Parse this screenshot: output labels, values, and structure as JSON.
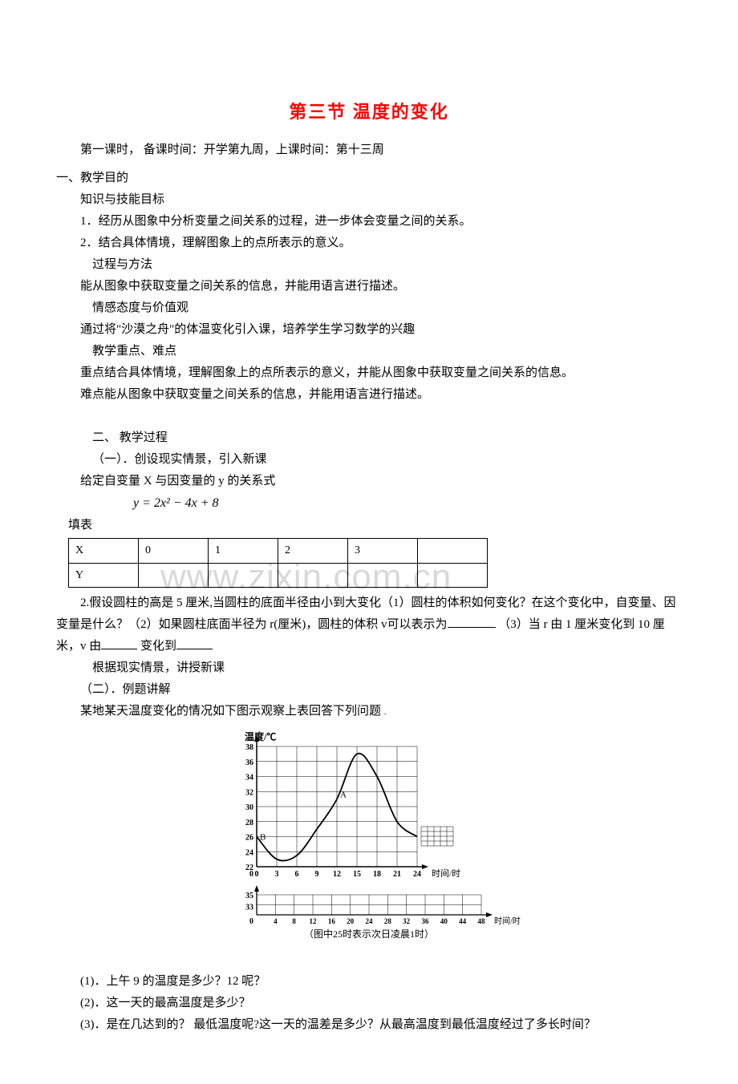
{
  "title": "第三节  温度的变化",
  "subtitle": "第一课时，    备课时间：开学第九周，上课时间：第十三周",
  "sections": {
    "s1": "一、教学目的",
    "s1a": "知识与技能目标",
    "s1a1": "1．经历从图象中分析变量之间关系的过程，进一步体会变量之间的关系。",
    "s1a2": "2．结合具体情境，理解图象上的点所表示的意义。",
    "s1b": "过程与方法",
    "s1b1": "能从图象中获取变量之间关系的信息，并能用语言进行描述。",
    "s1c": "情感态度与价值观",
    "s1c1": "通过将\"沙漠之舟\"的体温变化引入课，培养学生学习数学的兴趣",
    "s1d": "教学重点、难点",
    "s1d1": "重点结合具体情境，理解图象上的点所表示的意义，并能从图象中获取变量之间关系的信息。",
    "s1d2": "难点能从图象中获取变量之间关系的信息，并能用语言进行描述。",
    "s2": "二、 教学过程",
    "s2a": "（一）．创设现实情景，引入新课",
    "s2a1": "给定自变量 X 与因变量的 y 的关系式",
    "formula": "y = 2x² − 4x + 8",
    "filltable": "填表",
    "s2a2_pre": "2.假设圆柱的高是 5 厘米,当圆柱的底面半径由小到大变化（1）圆柱的体积如何变化？在这个变化中，自变量、因变量是什么？（2）如果圆柱底面半径为 r(厘米)，圆柱的体积 v可以表示为",
    "s2a2_mid": "（3）当 r 由 1 厘米变化到 10 厘米，v 由",
    "s2a2_mid2": " 变化到",
    "s2a3": "根据现实情景，讲授新课",
    "s2b": "（二）．例题讲解",
    "s2b1": "某地某天温度变化的情况如下图示观察上表回答下列问题",
    "q1": "(1)．上午 9 的温度是多少？12 呢？",
    "q2": "(2)．这一天的最高温度是多少？",
    "q3": "(3)．是在几达到的？  最低温度呢?这一天的温差是多少？从最高温度到最低温度经过了多长时间？"
  },
  "table": {
    "headers": [
      "X",
      "0",
      "1",
      "2",
      "3",
      ""
    ],
    "row2": [
      "Y",
      "",
      "",
      "",
      "",
      ""
    ]
  },
  "watermark": "www.zixin.com.cn",
  "chart": {
    "upper": {
      "ylabel": "温度/℃",
      "xlabel": "时间/时",
      "yticks": [
        22,
        24,
        26,
        28,
        30,
        32,
        34,
        36,
        38,
        0
      ],
      "xticks": [
        0,
        3,
        6,
        9,
        12,
        15,
        18,
        21,
        24
      ],
      "pointA": "A",
      "pointB": "B",
      "curve": [
        [
          0,
          26
        ],
        [
          3,
          23
        ],
        [
          6,
          23.5
        ],
        [
          9,
          27
        ],
        [
          12,
          31
        ],
        [
          15,
          37
        ],
        [
          18,
          34
        ],
        [
          21,
          28
        ],
        [
          24,
          26
        ]
      ],
      "grid_color": "#000000",
      "bg": "#ffffff",
      "line_color": "#000000"
    },
    "lower": {
      "yticks": [
        33,
        35
      ],
      "xticks": [
        0,
        4,
        8,
        12,
        16,
        20,
        24,
        28,
        32,
        36,
        40,
        44,
        48
      ],
      "xlabel": "时间/时",
      "caption": "（图中25时表示次日凌晨1时）"
    }
  }
}
